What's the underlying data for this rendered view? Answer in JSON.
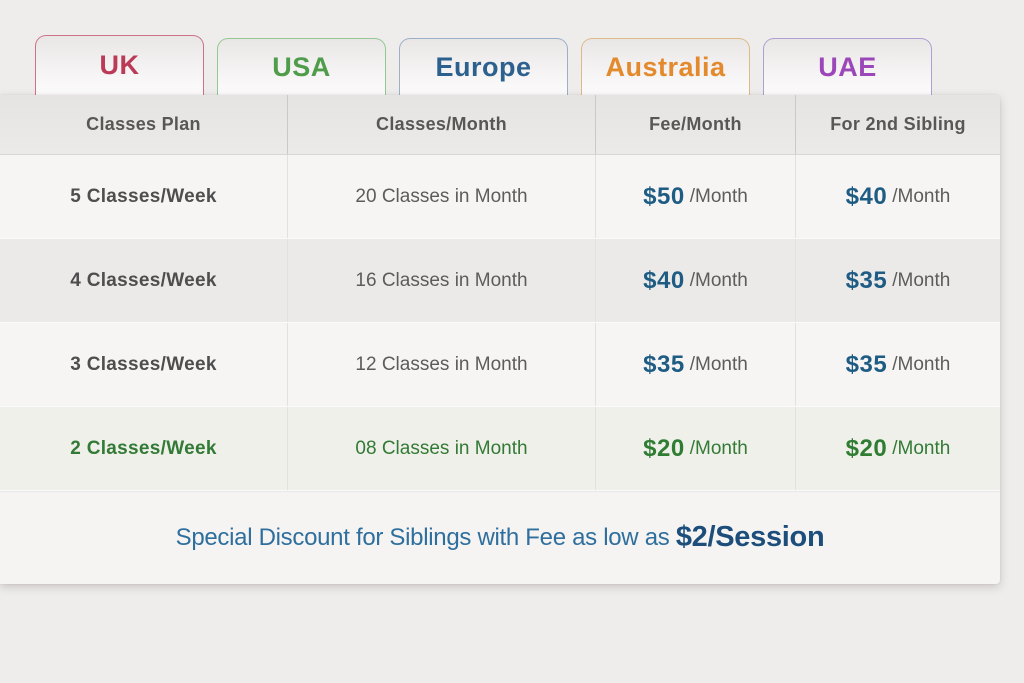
{
  "page": {
    "background": "#efedec"
  },
  "tabs": [
    {
      "label": "UK",
      "text_color": "#bb3a58",
      "border_color": "#cd7287",
      "active": true
    },
    {
      "label": "USA",
      "text_color": "#4f9c4b",
      "border_color": "#93c892",
      "active": false
    },
    {
      "label": "Europe",
      "text_color": "#2c618f",
      "border_color": "#9cafc7",
      "active": false
    },
    {
      "label": "Australia",
      "text_color": "#e38a2d",
      "border_color": "#ddba8a",
      "active": false
    },
    {
      "label": "UAE",
      "text_color": "#9c47b9",
      "border_color": "#af9fd2",
      "active": false
    }
  ],
  "table": {
    "headers": [
      "Classes Plan",
      "Classes/Month",
      "Fee/Month",
      "For 2nd Sibling"
    ],
    "rows": [
      {
        "plan": "5 Classes/Week",
        "classes": "20 Classes in Month",
        "fee": "$50",
        "fee_unit": "/Month",
        "sibling": "$40",
        "sibling_unit": "/Month",
        "accent": "#1e5c84",
        "text": "#4e4e4e",
        "muted": "#5c5c5c",
        "bg": "#f7f5f4"
      },
      {
        "plan": "4 Classes/Week",
        "classes": "16 Classes in Month",
        "fee": "$40",
        "fee_unit": "/Month",
        "sibling": "$35",
        "sibling_unit": "/Month",
        "accent": "#1e5c84",
        "text": "#4e4e4e",
        "muted": "#5c5c5c",
        "bg": "#ebeae9"
      },
      {
        "plan": "3 Classes/Week",
        "classes": "12 Classes in Month",
        "fee": "$35",
        "fee_unit": "/Month",
        "sibling": "$35",
        "sibling_unit": "/Month",
        "accent": "#1e5c84",
        "text": "#4e4e4e",
        "muted": "#5c5c5c",
        "bg": "#f7f5f4"
      },
      {
        "plan": "2 Classes/Week",
        "classes": "08 Classes in Month",
        "fee": "$20",
        "fee_unit": "/Month",
        "sibling": "$20",
        "sibling_unit": "/Month",
        "accent": "#2f7c33",
        "text": "#337a36",
        "muted": "#337a36",
        "bg": "#eff0e9"
      }
    ]
  },
  "footer": {
    "text": "Special Discount for Siblings with Fee as low as ",
    "highlight": "$2/Session",
    "text_color": "#2e6f9e",
    "highlight_color": "#1d4e7b"
  }
}
